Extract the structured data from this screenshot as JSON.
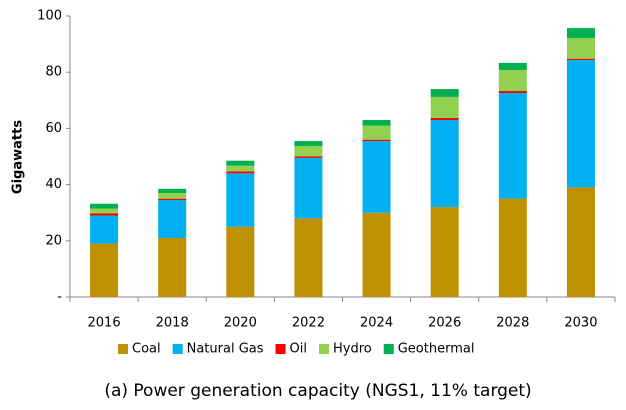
{
  "chart_data": {
    "type": "stacked-bar",
    "y_label": "Gigawatts",
    "caption": "(a) Power generation capacity (NGS1, 11%  target)",
    "categories": [
      "2016",
      "2018",
      "2020",
      "2022",
      "2024",
      "2026",
      "2028",
      "2030"
    ],
    "series": [
      {
        "name": "Coal",
        "color": "#bf9000",
        "values": [
          19,
          21,
          25,
          28,
          30,
          32,
          35,
          39
        ]
      },
      {
        "name": "Natural Gas",
        "color": "#00b0f0",
        "values": [
          10,
          13.5,
          19,
          21.5,
          25.5,
          31,
          37.6,
          45.3
        ]
      },
      {
        "name": "Oil",
        "color": "#ff0000",
        "values": [
          0.8,
          0.5,
          0.7,
          0.5,
          0.5,
          0.7,
          0.7,
          0.5
        ]
      },
      {
        "name": "Hydro",
        "color": "#92d050",
        "values": [
          1.7,
          2,
          2,
          3.7,
          5,
          7.5,
          7.5,
          7.4
        ]
      },
      {
        "name": "Geothermal",
        "color": "#00b050",
        "values": [
          1.7,
          1.5,
          1.8,
          1.8,
          2,
          2.8,
          2.5,
          3.5
        ]
      }
    ],
    "ylim": [
      0,
      100
    ],
    "yticks": [
      {
        "value": 0,
        "label": "-"
      },
      20,
      40,
      60,
      80,
      100
    ],
    "grid": false,
    "legend": "bottom"
  }
}
